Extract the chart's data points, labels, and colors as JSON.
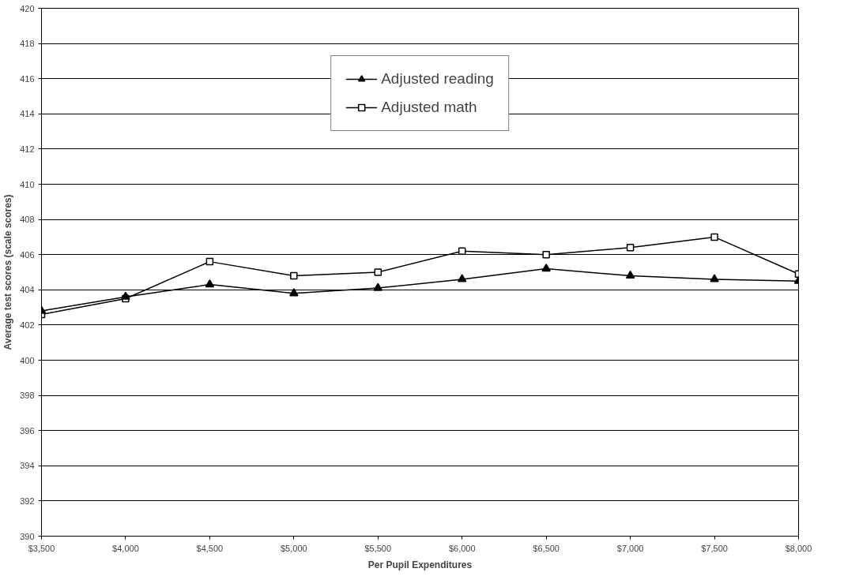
{
  "chart_data": {
    "type": "line",
    "xlabel": "Per Pupil Expenditures",
    "ylabel": "Average test scores (scale scores)",
    "x": [
      3500,
      4000,
      4500,
      5000,
      5500,
      6000,
      6500,
      7000,
      7500,
      8000
    ],
    "series": [
      {
        "name": "Adjusted reading",
        "color": "#000000",
        "marker": "triangle",
        "values": [
          402.8,
          403.6,
          404.3,
          403.8,
          404.1,
          404.6,
          405.2,
          404.8,
          404.6,
          404.5
        ]
      },
      {
        "name": "Adjusted math",
        "color": "#000000",
        "marker": "square",
        "values": [
          402.6,
          403.5,
          405.6,
          404.8,
          405.0,
          406.2,
          406.0,
          406.4,
          407.0,
          404.9
        ]
      }
    ],
    "xlim": [
      3500,
      8000
    ],
    "xticks": [
      {
        "value": 3500,
        "label": "$3,500"
      },
      {
        "value": 4000,
        "label": "$4,000"
      },
      {
        "value": 4500,
        "label": "$4,500"
      },
      {
        "value": 5000,
        "label": "$5,000"
      },
      {
        "value": 5500,
        "label": "$5,500"
      },
      {
        "value": 6000,
        "label": "$6,000"
      },
      {
        "value": 6500,
        "label": "$6,500"
      },
      {
        "value": 7000,
        "label": "$7,000"
      },
      {
        "value": 7500,
        "label": "$7,500"
      },
      {
        "value": 8000,
        "label": "$8,000"
      }
    ],
    "ylim": [
      390,
      420
    ],
    "yticks": [
      390,
      392,
      394,
      396,
      398,
      400,
      402,
      404,
      406,
      408,
      410,
      412,
      414,
      416,
      418,
      420
    ],
    "grid": "y",
    "legend": "top",
    "line_style": "solid"
  }
}
